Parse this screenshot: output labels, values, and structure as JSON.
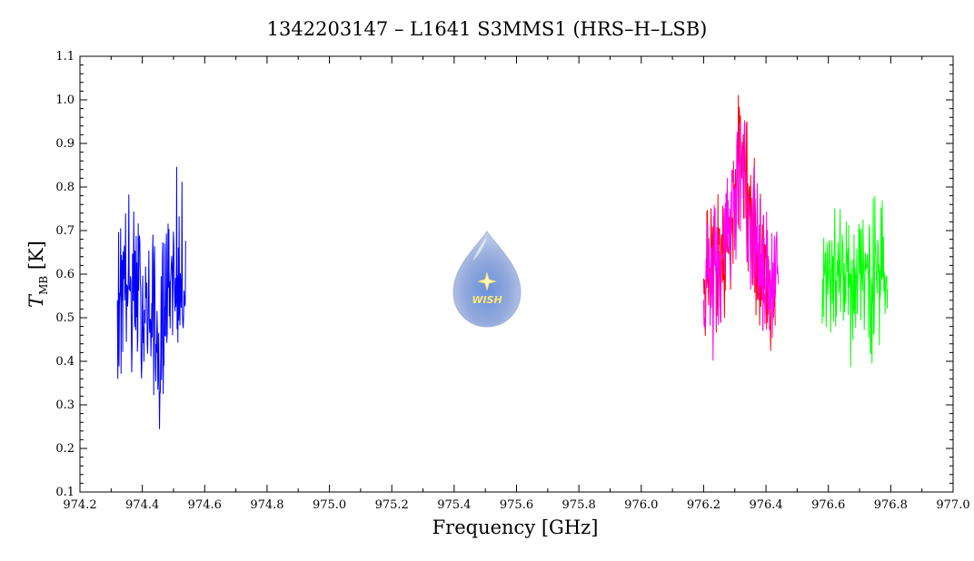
{
  "chart_data": {
    "type": "line",
    "title": "1342203147 – L1641 S3MMS1 (HRS–H–LSB)",
    "xlabel": "Frequency [GHz]",
    "ylabel_main": "T",
    "ylabel_sub": "MB",
    "ylabel_unit": "[K]",
    "xlim": [
      974.2,
      977.0
    ],
    "ylim": [
      0.1,
      1.1
    ],
    "xticks": [
      "974.2",
      "974.4",
      "974.6",
      "974.8",
      "975.0",
      "975.2",
      "975.4",
      "975.6",
      "975.8",
      "976.0",
      "976.2",
      "976.4",
      "976.6",
      "976.8",
      "977.0"
    ],
    "yticks": [
      "0.1",
      "0.2",
      "0.3",
      "0.4",
      "0.5",
      "0.6",
      "0.7",
      "0.8",
      "0.9",
      "1.0",
      "1.1"
    ],
    "grid": false,
    "logo_text": "WISH",
    "series": [
      {
        "color": "#0000ff",
        "x": [
          974.32,
          974.33,
          974.34,
          974.35,
          974.36,
          974.37,
          974.38,
          974.39,
          974.4,
          974.41,
          974.42,
          974.43,
          974.44,
          974.45,
          974.46,
          974.47,
          974.48,
          974.49,
          974.5,
          974.51,
          974.52,
          974.53,
          974.54
        ],
        "y": [
          0.57,
          0.58,
          0.6,
          0.58,
          0.56,
          0.57,
          0.55,
          0.54,
          0.53,
          0.52,
          0.5,
          0.48,
          0.45,
          0.4,
          0.33,
          0.5,
          0.58,
          0.6,
          0.59,
          0.58,
          0.57,
          0.56,
          0.58
        ],
        "y_min": [
          0.37,
          0.28,
          0.42,
          0.4,
          0.27,
          0.35,
          0.41,
          0.36,
          0.36,
          0.4,
          0.38,
          0.35,
          0.3,
          0.26,
          0.2,
          0.38,
          0.44,
          0.43,
          0.44,
          0.43,
          0.42,
          0.45,
          0.42
        ],
        "y_max": [
          0.7,
          0.76,
          0.82,
          0.75,
          0.83,
          0.76,
          0.75,
          0.73,
          0.72,
          0.7,
          0.69,
          0.66,
          0.75,
          0.72,
          0.62,
          0.75,
          0.74,
          0.73,
          0.75,
          0.85,
          0.87,
          0.8,
          0.76
        ]
      },
      {
        "color": "#ff0000",
        "x": [
          976.2,
          976.21,
          976.22,
          976.23,
          976.24,
          976.25,
          976.26,
          976.27,
          976.28,
          976.29,
          976.3,
          976.31,
          976.32,
          976.33,
          976.34,
          976.35,
          976.36,
          976.37,
          976.38,
          976.39,
          976.4,
          976.41,
          976.42,
          976.43
        ],
        "y": [
          0.58,
          0.6,
          0.59,
          0.6,
          0.61,
          0.62,
          0.63,
          0.65,
          0.68,
          0.72,
          0.77,
          0.85,
          0.88,
          0.87,
          0.82,
          0.75,
          0.7,
          0.66,
          0.63,
          0.61,
          0.6,
          0.59,
          0.58,
          0.57
        ],
        "y_min": [
          0.46,
          0.45,
          0.42,
          0.43,
          0.45,
          0.45,
          0.47,
          0.5,
          0.52,
          0.56,
          0.6,
          0.66,
          0.7,
          0.68,
          0.62,
          0.57,
          0.52,
          0.49,
          0.47,
          0.45,
          0.44,
          0.42,
          0.41,
          0.42
        ],
        "y_max": [
          0.78,
          0.79,
          0.76,
          0.8,
          0.8,
          0.79,
          0.8,
          0.82,
          0.85,
          0.9,
          0.95,
          1.02,
          1.0,
          0.99,
          0.97,
          0.92,
          0.88,
          0.84,
          0.82,
          0.8,
          0.78,
          0.76,
          0.74,
          0.72
        ]
      },
      {
        "color": "#ff00ff",
        "x": [
          976.2,
          976.21,
          976.22,
          976.23,
          976.24,
          976.25,
          976.26,
          976.27,
          976.28,
          976.29,
          976.3,
          976.31,
          976.32,
          976.33,
          976.34,
          976.35,
          976.36,
          976.37,
          976.38,
          976.39,
          976.4,
          976.41,
          976.42,
          976.43,
          976.44
        ],
        "y": [
          0.57,
          0.58,
          0.58,
          0.59,
          0.6,
          0.62,
          0.63,
          0.66,
          0.69,
          0.73,
          0.78,
          0.84,
          0.86,
          0.85,
          0.8,
          0.74,
          0.69,
          0.65,
          0.62,
          0.6,
          0.59,
          0.58,
          0.57,
          0.56,
          0.57
        ],
        "y_min": [
          0.45,
          0.46,
          0.4,
          0.38,
          0.42,
          0.45,
          0.47,
          0.5,
          0.53,
          0.57,
          0.6,
          0.66,
          0.68,
          0.66,
          0.61,
          0.55,
          0.5,
          0.47,
          0.45,
          0.43,
          0.42,
          0.42,
          0.41,
          0.41,
          0.42
        ],
        "y_max": [
          0.75,
          0.77,
          0.75,
          0.78,
          0.79,
          0.8,
          0.8,
          0.83,
          0.86,
          0.9,
          0.95,
          1.0,
          0.99,
          0.98,
          0.95,
          0.9,
          0.86,
          0.82,
          0.8,
          0.78,
          0.76,
          0.75,
          0.73,
          0.72,
          0.71
        ]
      },
      {
        "color": "#00ff00",
        "x": [
          976.58,
          976.59,
          976.6,
          976.61,
          976.62,
          976.63,
          976.64,
          976.65,
          976.66,
          976.67,
          976.68,
          976.69,
          976.7,
          976.71,
          976.72,
          976.73,
          976.74,
          976.75,
          976.76,
          976.77,
          976.78,
          976.79
        ],
        "y": [
          0.59,
          0.6,
          0.6,
          0.61,
          0.6,
          0.61,
          0.6,
          0.59,
          0.61,
          0.6,
          0.6,
          0.61,
          0.6,
          0.59,
          0.6,
          0.61,
          0.58,
          0.59,
          0.6,
          0.6,
          0.59,
          0.6
        ],
        "y_min": [
          0.48,
          0.47,
          0.46,
          0.42,
          0.45,
          0.47,
          0.46,
          0.45,
          0.44,
          0.36,
          0.45,
          0.46,
          0.45,
          0.44,
          0.44,
          0.45,
          0.34,
          0.42,
          0.43,
          0.42,
          0.44,
          0.45
        ],
        "y_max": [
          0.74,
          0.71,
          0.72,
          0.74,
          0.79,
          0.79,
          0.75,
          0.73,
          0.74,
          0.72,
          0.74,
          0.73,
          0.78,
          0.74,
          0.72,
          0.75,
          0.76,
          0.8,
          0.76,
          0.81,
          0.79,
          0.8
        ]
      }
    ]
  }
}
